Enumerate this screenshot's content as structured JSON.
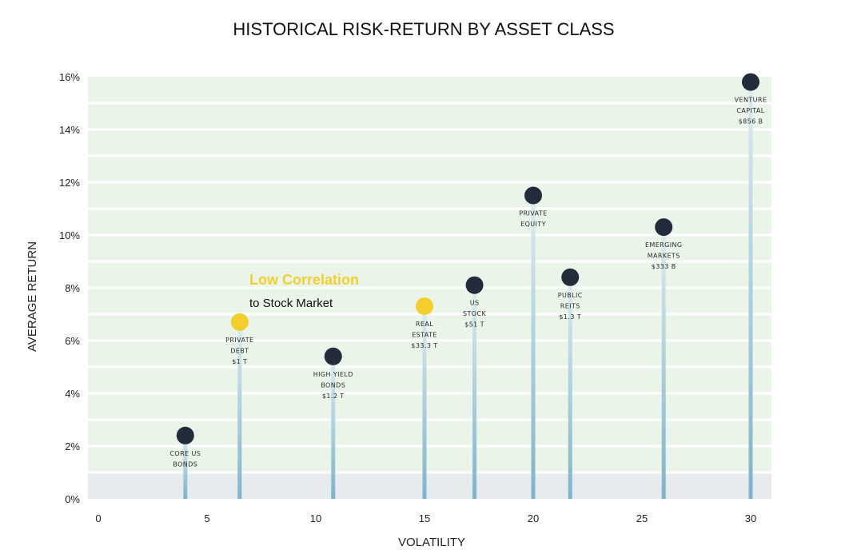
{
  "chart_data": {
    "type": "scatter",
    "title": "HISTORICAL RISK-RETURN BY ASSET CLASS",
    "xlabel": "VOLATILITY",
    "ylabel": "AVERAGE RETURN",
    "xlim": [
      0,
      31
    ],
    "ylim": [
      0,
      16
    ],
    "xticks": [
      {
        "value": 0,
        "label": "0"
      },
      {
        "value": 5,
        "label": "5"
      },
      {
        "value": 10,
        "label": "10"
      },
      {
        "value": 15,
        "label": "15"
      },
      {
        "value": 20,
        "label": "20"
      },
      {
        "value": 25,
        "label": "25"
      },
      {
        "value": 30,
        "label": "30"
      }
    ],
    "yticks": [
      {
        "value": 0,
        "label": "0%"
      },
      {
        "value": 2,
        "label": "2%"
      },
      {
        "value": 4,
        "label": "4%"
      },
      {
        "value": 6,
        "label": "6%"
      },
      {
        "value": 8,
        "label": "8%"
      },
      {
        "value": 10,
        "label": "10%"
      },
      {
        "value": 12,
        "label": "12%"
      },
      {
        "value": 14,
        "label": "14%"
      },
      {
        "value": 16,
        "label": "16%"
      }
    ],
    "grid": true,
    "band_upper": 1,
    "points": [
      {
        "x": 4.0,
        "y": 2.4,
        "lines": [
          "CORE US",
          "BONDS"
        ],
        "highlight": false
      },
      {
        "x": 6.5,
        "y": 6.7,
        "lines": [
          "PRIVATE",
          "DEBT",
          "$1 T"
        ],
        "highlight": true
      },
      {
        "x": 10.8,
        "y": 5.4,
        "lines": [
          "HIGH YIELD",
          "BONDS",
          "$1.2 T"
        ],
        "highlight": false
      },
      {
        "x": 15.0,
        "y": 7.3,
        "lines": [
          "REAL",
          "ESTATE",
          "$33.3 T"
        ],
        "highlight": true
      },
      {
        "x": 17.3,
        "y": 8.1,
        "lines": [
          "US",
          "STOCK",
          "$51 T"
        ],
        "highlight": false
      },
      {
        "x": 20.0,
        "y": 11.5,
        "lines": [
          "PRIVATE",
          "EQUITY"
        ],
        "highlight": false
      },
      {
        "x": 21.7,
        "y": 8.4,
        "lines": [
          "PUBLIC",
          "REITS",
          "$1.3 T"
        ],
        "highlight": false
      },
      {
        "x": 26.0,
        "y": 10.3,
        "lines": [
          "EMERGING",
          "MARKETS",
          "$333 B"
        ],
        "highlight": false
      },
      {
        "x": 30.0,
        "y": 15.8,
        "lines": [
          "VENTURE",
          "CAPITAL",
          "$856 B"
        ],
        "highlight": false
      }
    ],
    "annotation": {
      "heading": "Low Correlation",
      "subtext": "to Stock Market"
    },
    "colors": {
      "dark_marker": "#222c3a",
      "highlight_marker": "#f2cf2e",
      "annotation_heading": "#f2cf2e",
      "grid_band": "#eaf4e8",
      "grid_line": "#ffffff",
      "bottom_band": "#e7ebee",
      "stem_top": "#dcecf0",
      "stem_bottom": "#7fb3cb"
    }
  }
}
